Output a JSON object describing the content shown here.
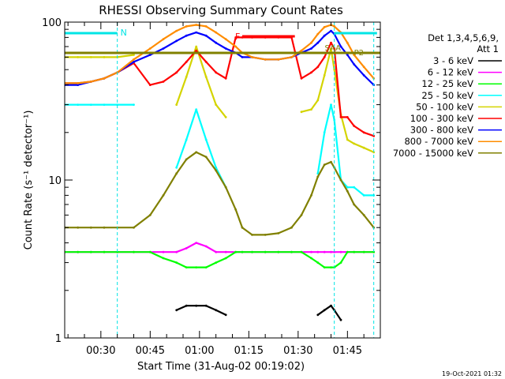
{
  "chart_data": {
    "type": "line",
    "title": "RHESSI Observing Summary Count Rates",
    "xlabel": "Start Time (31-Aug-02 00:19:02)",
    "ylabel": "Count Rate (s⁻¹ detector⁻¹)",
    "y_scale": "log",
    "ylim": [
      1,
      100
    ],
    "xlim": [
      "00:19",
      "01:55"
    ],
    "x_ticks": [
      "00:30",
      "00:45",
      "01:00",
      "01:15",
      "01:30",
      "01:45"
    ],
    "y_ticks": [
      "1",
      "10",
      "100"
    ],
    "legend_header": [
      "Det 1,3,4,5,6,9,",
      "Att 1"
    ],
    "legend_position": "right",
    "timestamp": "19-Oct-2021 01:32",
    "flags": {
      "night": {
        "label": "N",
        "intervals": [
          [
            "00:19",
            "00:35"
          ],
          [
            "01:41",
            "01:54"
          ]
        ],
        "color": "#00e5e5"
      },
      "flare": {
        "label": "F",
        "intervals": [
          [
            "01:13",
            "01:29"
          ]
        ],
        "color": "#ff0000"
      },
      "saa_label": "SAA",
      "p2_label": "P2",
      "dashed_time_markers": [
        "00:35",
        "01:41",
        "01:53"
      ]
    },
    "x": [
      "00:19",
      "00:23",
      "00:27",
      "00:31",
      "00:35",
      "00:40",
      "00:45",
      "00:49",
      "00:53",
      "00:56",
      "00:59",
      "01:02",
      "01:05",
      "01:08",
      "01:11",
      "01:13",
      "01:16",
      "01:20",
      "01:24",
      "01:28",
      "01:31",
      "01:34",
      "01:36",
      "01:38",
      "01:40",
      "01:41",
      "01:43",
      "01:45",
      "01:47",
      "01:50",
      "01:53"
    ],
    "series": [
      {
        "name": "3 - 6 keV",
        "color": "#000000",
        "values": [
          null,
          null,
          null,
          null,
          null,
          null,
          null,
          null,
          1.5,
          1.6,
          1.6,
          1.6,
          1.5,
          1.4,
          null,
          null,
          null,
          null,
          null,
          null,
          null,
          null,
          1.4,
          1.5,
          1.6,
          1.5,
          1.3,
          null,
          null,
          null,
          null
        ]
      },
      {
        "name": "6 - 12 keV",
        "color": "#ff00ff",
        "values": [
          3.5,
          3.5,
          3.5,
          3.5,
          3.5,
          3.5,
          3.5,
          3.5,
          3.5,
          3.7,
          4.0,
          3.8,
          3.5,
          3.5,
          3.5,
          3.5,
          3.5,
          3.5,
          3.5,
          3.5,
          3.5,
          3.5,
          3.5,
          3.5,
          3.5,
          3.5,
          3.5,
          3.5,
          3.5,
          3.5,
          3.5
        ]
      },
      {
        "name": "12 - 25 keV",
        "color": "#00ff00",
        "values": [
          3.5,
          3.5,
          3.5,
          3.5,
          3.5,
          3.5,
          3.5,
          3.2,
          3.0,
          2.8,
          2.8,
          2.8,
          3.0,
          3.2,
          3.5,
          3.5,
          3.5,
          3.5,
          3.5,
          3.5,
          3.5,
          3.2,
          3.0,
          2.8,
          2.8,
          2.8,
          3.0,
          3.5,
          3.5,
          3.5,
          3.5
        ]
      },
      {
        "name": "25 - 50 keV",
        "color": "#00ffff",
        "values": [
          30,
          30,
          30,
          30,
          30,
          30,
          null,
          null,
          12,
          18,
          28,
          18,
          12,
          9,
          null,
          null,
          null,
          null,
          null,
          null,
          null,
          null,
          11,
          20,
          30,
          24,
          10,
          9,
          9,
          8,
          8
        ]
      },
      {
        "name": "50 - 100 keV",
        "color": "#d4d400",
        "values": [
          60,
          60,
          60,
          60,
          60,
          62,
          null,
          null,
          30,
          45,
          70,
          45,
          30,
          25,
          null,
          null,
          null,
          null,
          null,
          null,
          27,
          28,
          32,
          46,
          68,
          50,
          26,
          18,
          17,
          16,
          15
        ]
      },
      {
        "name": "100 - 300 keV",
        "color": "#ff0000",
        "values": [
          41,
          41,
          42,
          44,
          48,
          55,
          40,
          42,
          48,
          56,
          66,
          56,
          48,
          44,
          80,
          80,
          80,
          80,
          80,
          80,
          44,
          48,
          52,
          60,
          74,
          68,
          25,
          25,
          22,
          20,
          19
        ]
      },
      {
        "name": "300 - 800 keV",
        "color": "#0000ff",
        "values": [
          40,
          40,
          42,
          44,
          48,
          56,
          62,
          68,
          76,
          82,
          86,
          82,
          74,
          68,
          64,
          60,
          60,
          58,
          58,
          60,
          64,
          68,
          74,
          82,
          88,
          84,
          70,
          62,
          54,
          46,
          40
        ]
      },
      {
        "name": "800 - 7000 keV",
        "color": "#ff8c00",
        "values": [
          41,
          41,
          42,
          44,
          48,
          58,
          68,
          78,
          88,
          94,
          96,
          94,
          86,
          78,
          70,
          64,
          60,
          58,
          58,
          60,
          66,
          74,
          84,
          93,
          96,
          94,
          86,
          74,
          62,
          52,
          44
        ]
      },
      {
        "name": "7000 - 15000 keV",
        "color": "#808000",
        "values": [
          5,
          5,
          5,
          5,
          5,
          5,
          6,
          8,
          11,
          13.5,
          15,
          14,
          11.5,
          9,
          6.5,
          5,
          4.5,
          4.5,
          4.6,
          5,
          6,
          8,
          10.5,
          12.5,
          13,
          12,
          10,
          8.5,
          7,
          6,
          5
        ]
      }
    ]
  }
}
